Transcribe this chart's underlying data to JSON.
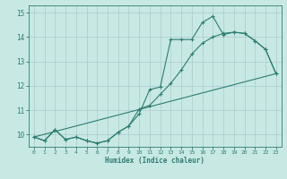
{
  "xlabel": "Humidex (Indice chaleur)",
  "xlim": [
    -0.5,
    23.5
  ],
  "ylim": [
    9.5,
    15.3
  ],
  "xticks": [
    0,
    1,
    2,
    3,
    4,
    5,
    6,
    7,
    8,
    9,
    10,
    11,
    12,
    13,
    14,
    15,
    16,
    17,
    18,
    19,
    20,
    21,
    22,
    23
  ],
  "yticks": [
    10,
    11,
    12,
    13,
    14,
    15
  ],
  "bg_color": "#c8e8e4",
  "grid_color": "#a8cccc",
  "line_color": "#2e7d6e",
  "line1_x": [
    0,
    1,
    2,
    3,
    4,
    5,
    6,
    7,
    8,
    9,
    10,
    11,
    12,
    13,
    14,
    15,
    16,
    17,
    18,
    19,
    20,
    21,
    22,
    23
  ],
  "line1_y": [
    9.9,
    9.75,
    10.2,
    9.8,
    9.9,
    9.75,
    9.65,
    9.75,
    10.1,
    10.35,
    10.85,
    11.85,
    11.95,
    13.9,
    13.9,
    13.9,
    14.6,
    14.85,
    14.1,
    14.2,
    14.15,
    13.85,
    13.5,
    12.5
  ],
  "line2_x": [
    0,
    1,
    2,
    3,
    4,
    5,
    6,
    7,
    8,
    9,
    10,
    11,
    12,
    13,
    14,
    15,
    16,
    17,
    18,
    19,
    20,
    21,
    22,
    23
  ],
  "line2_y": [
    9.9,
    9.75,
    10.2,
    9.8,
    9.9,
    9.75,
    9.65,
    9.75,
    10.1,
    10.35,
    11.05,
    11.2,
    11.65,
    12.1,
    12.65,
    13.3,
    13.75,
    14.0,
    14.15,
    14.2,
    14.15,
    13.85,
    13.5,
    12.5
  ],
  "line3_x": [
    0,
    23
  ],
  "line3_y": [
    9.9,
    12.5
  ]
}
